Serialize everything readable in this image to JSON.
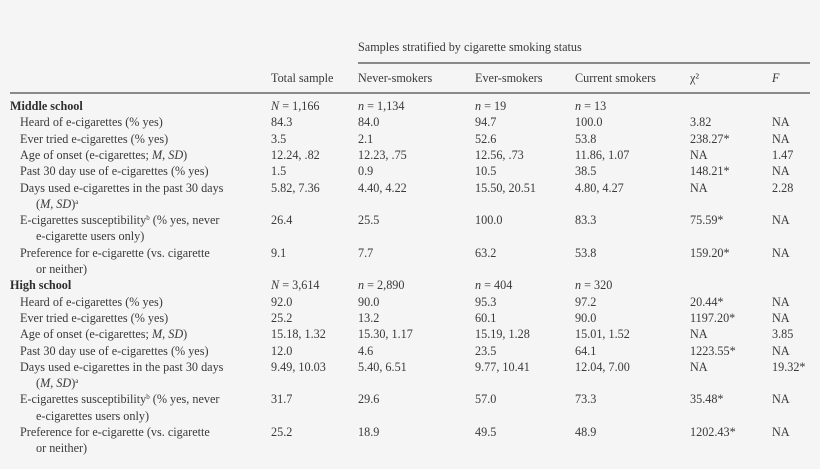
{
  "table": {
    "spanner_header": "Samples stratified by cigarette smoking status",
    "columns": [
      "Total sample",
      "Never-smokers",
      "Ever-smokers",
      "Current smokers",
      "χ²",
      "F"
    ],
    "sections": [
      {
        "title": "Middle school",
        "n_row": {
          "total": {
            "prefix": "N",
            "value": " = 1,166"
          },
          "never": {
            "prefix": "n",
            "value": " = 1,134"
          },
          "ever": {
            "prefix": "n",
            "value": " = 19"
          },
          "current": {
            "prefix": "n",
            "value": " = 13"
          }
        },
        "rows": [
          {
            "label": "Heard of e-cigarettes (% yes)",
            "label2": "",
            "total": "84.3",
            "never": "84.0",
            "ever": "94.7",
            "current": "100.0",
            "chi2": "3.82",
            "f": "NA"
          },
          {
            "label": "Ever tried e-cigarettes (% yes)",
            "label2": "",
            "total": "3.5",
            "never": "2.1",
            "ever": "52.6",
            "current": "53.8",
            "chi2": "238.27*",
            "f": "NA"
          },
          {
            "label": "Age of onset (e-cigarettes; M, SD)",
            "label2": "",
            "total": "12.24, .82",
            "never": "12.23, .75",
            "ever": "12.56, .73",
            "current": "11.86, 1.07",
            "chi2": "NA",
            "f": "1.47"
          },
          {
            "label": "Past 30 day use of e-cigarettes (% yes)",
            "label2": "",
            "total": "1.5",
            "never": "0.9",
            "ever": "10.5",
            "current": "38.5",
            "chi2": "148.21*",
            "f": "NA"
          },
          {
            "label": "Days used e-cigarettes in the past 30 days",
            "label2": "(M, SD)a",
            "total": "5.82, 7.36",
            "never": "4.40, 4.22",
            "ever": "15.50, 20.51",
            "current": "4.80, 4.27",
            "chi2": "NA",
            "f": "2.28"
          },
          {
            "label": "E-cigarettes susceptibilityb (% yes, never",
            "label2": "e-cigarette users only)",
            "total": "26.4",
            "never": "25.5",
            "ever": "100.0",
            "current": "83.3",
            "chi2": "75.59*",
            "f": "NA"
          },
          {
            "label": "Preference for e-cigarette (vs. cigarette",
            "label2": "or neither)",
            "total": "9.1",
            "never": "7.7",
            "ever": "63.2",
            "current": "53.8",
            "chi2": "159.20*",
            "f": "NA"
          }
        ]
      },
      {
        "title": "High school",
        "n_row": {
          "total": {
            "prefix": "N",
            "value": " = 3,614"
          },
          "never": {
            "prefix": "n",
            "value": " = 2,890"
          },
          "ever": {
            "prefix": "n",
            "value": " = 404"
          },
          "current": {
            "prefix": "n",
            "value": " = 320"
          }
        },
        "rows": [
          {
            "label": "Heard of e-cigarettes (% yes)",
            "label2": "",
            "total": "92.0",
            "never": "90.0",
            "ever": "95.3",
            "current": "97.2",
            "chi2": "20.44*",
            "f": "NA"
          },
          {
            "label": "Ever tried e-cigarettes (% yes)",
            "label2": "",
            "total": "25.2",
            "never": "13.2",
            "ever": "60.1",
            "current": "90.0",
            "chi2": "1197.20*",
            "f": "NA"
          },
          {
            "label": "Age of onset (e-cigarettes; M, SD)",
            "label2": "",
            "total": "15.18, 1.32",
            "never": "15.30, 1.17",
            "ever": "15.19, 1.28",
            "current": "15.01, 1.52",
            "chi2": "NA",
            "f": "3.85"
          },
          {
            "label": "Past 30 day use of e-cigarettes (% yes)",
            "label2": "",
            "total": "12.0",
            "never": "4.6",
            "ever": "23.5",
            "current": "64.1",
            "chi2": "1223.55*",
            "f": "NA"
          },
          {
            "label": "Days used e-cigarettes in the past 30 days",
            "label2": "(M, SD)a",
            "total": "9.49, 10.03",
            "never": "5.40, 6.51",
            "ever": "9.77, 10.41",
            "current": "12.04, 7.00",
            "chi2": "NA",
            "f": "19.32*"
          },
          {
            "label": "E-cigarettes susceptibilityb (% yes, never",
            "label2": "e-cigarettes users only)",
            "total": "31.7",
            "never": "29.6",
            "ever": "57.0",
            "current": "73.3",
            "chi2": "35.48*",
            "f": "NA"
          },
          {
            "label": "Preference for e-cigarette (vs. cigarette",
            "label2": "or neither)",
            "total": "25.2",
            "never": "18.9",
            "ever": "49.5",
            "current": "48.9",
            "chi2": "1202.43*",
            "f": "NA"
          }
        ]
      }
    ]
  }
}
